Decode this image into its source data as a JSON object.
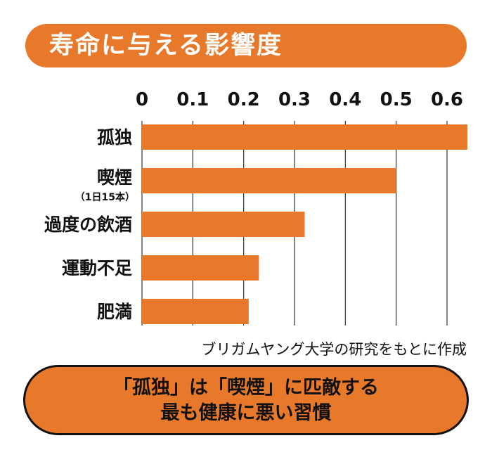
{
  "title": "寿命に与える影響度",
  "source": "ブリガムヤング大学の研究をもとに作成",
  "conclusion": {
    "line1": "「孤独」は「喫煙」に匹敵する",
    "line2": "最も健康に悪い習慣"
  },
  "colors": {
    "accent": "#e8792a",
    "text": "#111111",
    "grid": "#333333"
  },
  "chart_data": {
    "type": "bar",
    "orientation": "horizontal",
    "categories": [
      "孤独",
      "喫煙",
      "過度の飲酒",
      "運動不足",
      "肥満"
    ],
    "category_notes": [
      "",
      "（1日15本）",
      "",
      "",
      ""
    ],
    "values": [
      0.64,
      0.5,
      0.32,
      0.23,
      0.21
    ],
    "xlim": [
      0,
      0.64
    ],
    "xticks": [
      "0",
      "0.1",
      "0.2",
      "0.3",
      "0.4",
      "0.5",
      "0.6"
    ],
    "xlabel": "",
    "ylabel": "",
    "grid": "vertical",
    "axis_position": "top"
  }
}
